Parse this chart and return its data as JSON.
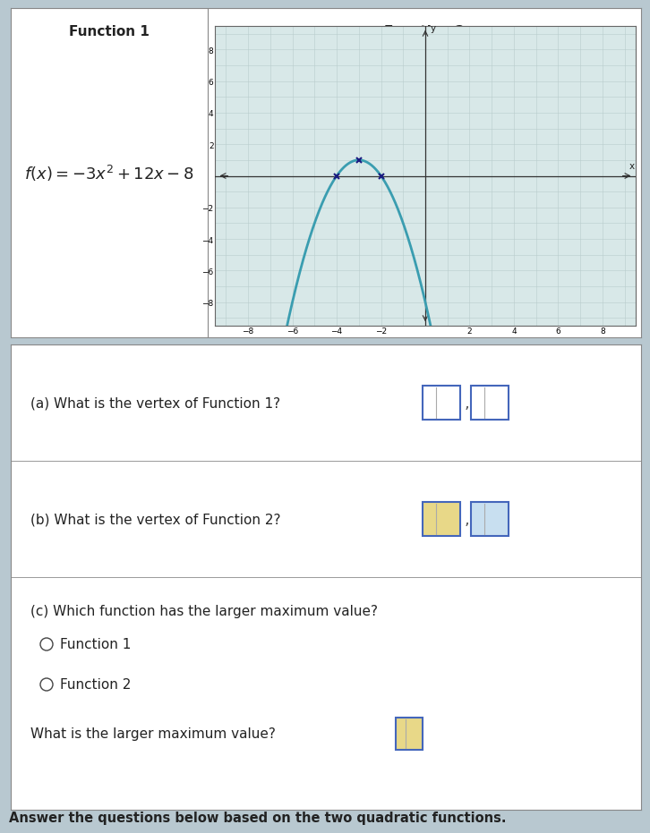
{
  "title": "Answer the questions below based on the two quadratic functions.",
  "title_fontsize": 10.5,
  "func1_label": "Function 1",
  "func2_label": "Function 2",
  "func1_eq_latex": "$f(x)=-3x^2+12x-8$",
  "func2_curve_color": "#3a9db0",
  "graph_bg": "#d8e8e8",
  "graph_grid_color": "#b8cccc",
  "graph_xlim": [
    -9.5,
    9.5
  ],
  "graph_ylim": [
    -9.5,
    9.5
  ],
  "graph_xticks": [
    -8,
    -6,
    -4,
    -2,
    2,
    4,
    6,
    8
  ],
  "graph_yticks": [
    -8,
    -6,
    -4,
    -2,
    2,
    4,
    6,
    8
  ],
  "qa_label_a": "(a) What is the vertex of Function 1?",
  "qa_label_b": "(b) What is the vertex of Function 2?",
  "qa_label_c": "(c) Which function has the larger maximum value?",
  "radio_func1": "Function 1",
  "radio_func2": "Function 2",
  "max_val_label": "What is the larger maximum value?",
  "outer_bg": "#b8c8d0",
  "panel_bg": "#ffffff",
  "font_color": "#222222",
  "box_border_color": "#4466bb",
  "box_fill_a": "#ffffff",
  "box_fill_b1": "#e8d888",
  "box_fill_b2": "#c8dff0",
  "box_fill_c": "#e8d888",
  "divider_color": "#999999",
  "top_panel_border": "#888888",
  "graph_border": "#666666"
}
